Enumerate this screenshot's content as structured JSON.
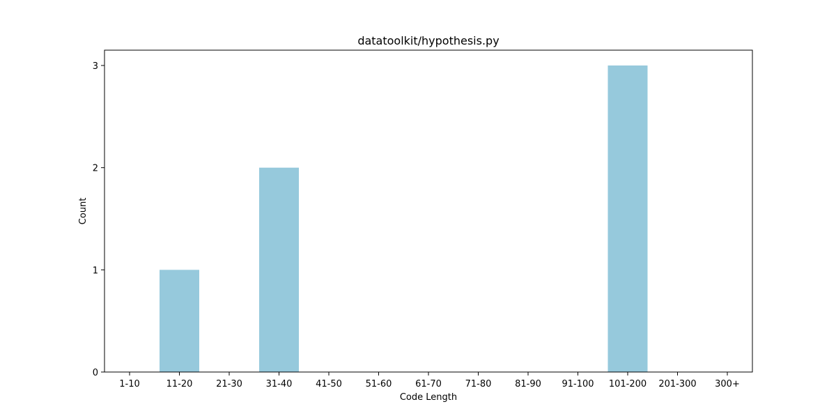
{
  "chart_data": {
    "type": "bar",
    "title": "datatoolkit/hypothesis.py",
    "xlabel": "Code Length",
    "ylabel": "Count",
    "categories": [
      "1-10",
      "11-20",
      "21-30",
      "31-40",
      "41-50",
      "51-60",
      "61-70",
      "71-80",
      "81-90",
      "91-100",
      "101-200",
      "201-300",
      "300+"
    ],
    "values": [
      0,
      1,
      0,
      2,
      0,
      0,
      0,
      0,
      0,
      0,
      3,
      0,
      0
    ],
    "ylim": [
      0,
      3.15
    ],
    "yticks": [
      "0",
      "1",
      "2",
      "3"
    ],
    "grid": false,
    "bar_color": "#96c9dc"
  }
}
